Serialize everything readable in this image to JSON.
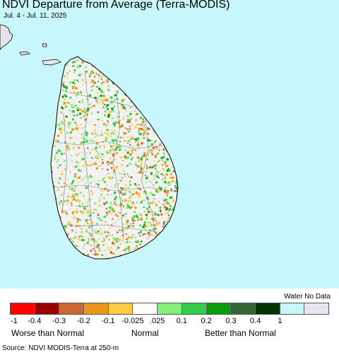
{
  "title": "NDVI Departure from Average (Terra-MODIS)",
  "subtitle": "Jul. 4 - Jul. 11, 2025",
  "colors": {
    "water": "#c8f7fb",
    "land_base": "#f2f2f2",
    "border_lines": "#7a7a7a",
    "coastline": "#000000"
  },
  "legend": {
    "water_nodata_label": "Water No Data",
    "swatches": [
      {
        "color": "#ff0000"
      },
      {
        "color": "#990000"
      },
      {
        "color": "#cc6633"
      },
      {
        "color": "#e8961e"
      },
      {
        "color": "#ffcc44"
      },
      {
        "color": "#ffffff"
      },
      {
        "color": "#80f07a"
      },
      {
        "color": "#33cc4d"
      },
      {
        "color": "#0a9e0a"
      },
      {
        "color": "#336633"
      },
      {
        "color": "#003300"
      },
      {
        "color": "#c8f7fb"
      },
      {
        "color": "#e6e6ee"
      }
    ],
    "tick_labels": [
      "-1",
      "-0.4",
      "-0.3",
      "-0.2",
      "-0.1",
      "-0.025",
      ".025",
      "0.1",
      "0.2",
      "0.3",
      "0.4",
      "1"
    ],
    "worse_label": "Worse than Normal",
    "normal_label": "Normal",
    "better_label": "Better than Normal"
  },
  "source": "Source: NDVI MODIS-Terra at 250-m"
}
